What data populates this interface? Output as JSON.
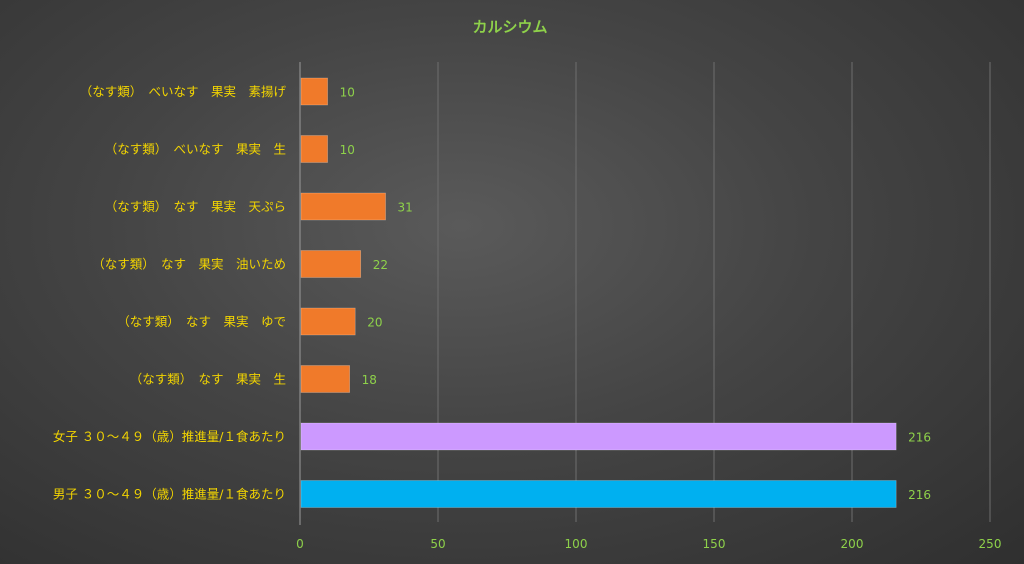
{
  "chart_data": {
    "type": "bar",
    "orientation": "horizontal",
    "title": "カルシウム",
    "categories": [
      "（なす類）　べいなす　果実　素揚げ",
      "（なす類）　べいなす　果実　生",
      "（なす類）　なす　果実　天ぷら",
      "（なす類）　なす　果実　油いため",
      "（なす類）　なす　果実　ゆで",
      "（なす類）　なす　果実　生",
      "女子 ３０～４９（歳）推進量/１食あたり",
      "男子 ３０～４９（歳）推進量/１食あたり"
    ],
    "values": [
      10,
      10,
      31,
      22,
      20,
      18,
      216,
      216
    ],
    "bar_colors": [
      "#f07a2a",
      "#f07a2a",
      "#f07a2a",
      "#f07a2a",
      "#f07a2a",
      "#f07a2a",
      "#cc99ff",
      "#00b0f0"
    ],
    "xlim": [
      0,
      250
    ],
    "xticks": [
      0,
      50,
      100,
      150,
      200,
      250
    ],
    "grid": true,
    "legend": "none",
    "data_labels": true
  },
  "colors": {
    "title": "#8ed14a",
    "category_text": "#f2d400",
    "tick_text": "#8ed14a",
    "data_label_text": "#8ed14a",
    "gridline": "#6e6e6e",
    "axis_line": "#9a9a9a"
  }
}
